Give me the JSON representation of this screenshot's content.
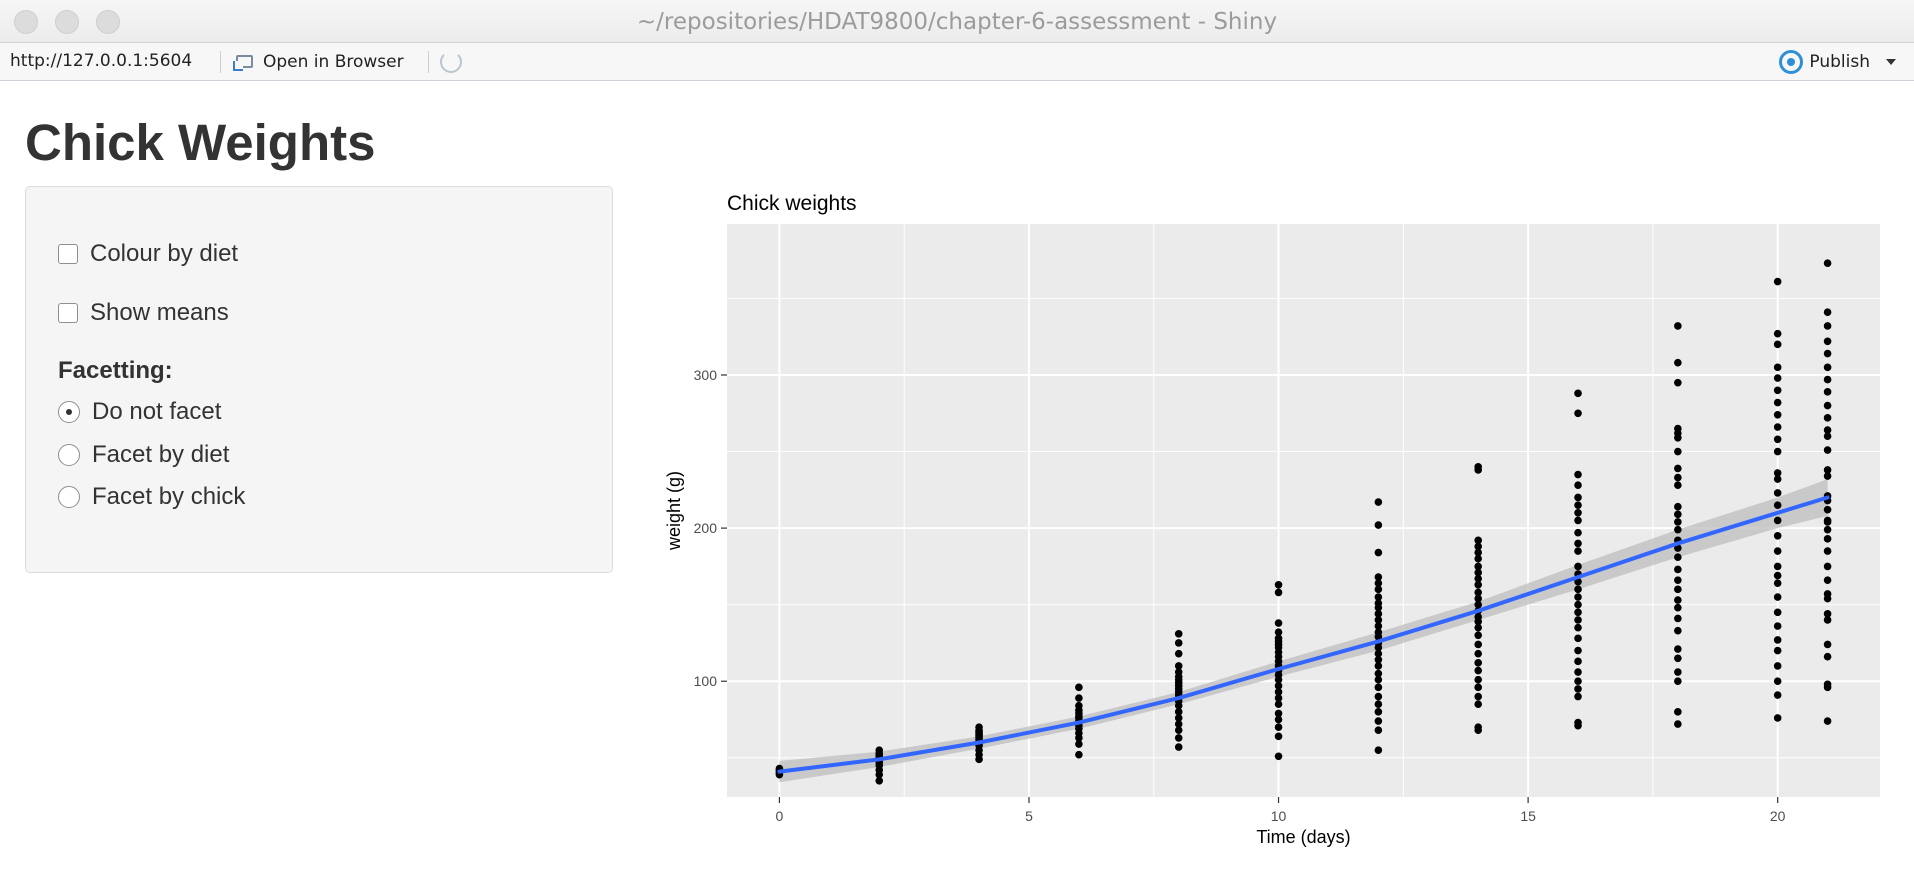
{
  "window": {
    "title": "~/repositories/HDAT9800/chapter-6-assessment - Shiny"
  },
  "toolbar": {
    "url": "http://127.0.0.1:5604",
    "open_in_browser_label": "Open in Browser",
    "publish_label": "Publish"
  },
  "app": {
    "title": "Chick Weights",
    "checkboxes": [
      {
        "label": "Colour by diet",
        "checked": false
      },
      {
        "label": "Show means",
        "checked": false
      }
    ],
    "facetting_label": "Facetting:",
    "radios": [
      {
        "label": "Do not facet",
        "checked": true
      },
      {
        "label": "Facet by diet",
        "checked": false
      },
      {
        "label": "Facet by chick",
        "checked": false
      }
    ]
  },
  "chart_data": {
    "type": "scatter",
    "title": "Chick weights",
    "xlabel": "Time (days)",
    "ylabel": "weight (g)",
    "xlim": [
      -1.05,
      22.05
    ],
    "ylim": [
      24.4,
      398.6
    ],
    "xticks": [
      0,
      5,
      10,
      15,
      20
    ],
    "yticks": [
      100,
      200,
      300
    ],
    "grid": true,
    "colors": {
      "panel": "#ebebeb",
      "grid": "#ffffff",
      "points": "#000000",
      "smooth_line": "#3366ff",
      "ribbon": "#bdbdbd"
    },
    "points_by_time": [
      {
        "x": 0,
        "y": [
          39,
          40,
          41,
          42,
          43
        ]
      },
      {
        "x": 2,
        "y": [
          35,
          39,
          42,
          45,
          47,
          49,
          50,
          51,
          52,
          53,
          55
        ]
      },
      {
        "x": 4,
        "y": [
          49,
          52,
          55,
          58,
          59,
          61,
          62,
          63,
          64,
          65,
          66,
          67,
          68,
          70
        ]
      },
      {
        "x": 6,
        "y": [
          52,
          59,
          63,
          66,
          69,
          71,
          73,
          74,
          76,
          77,
          79,
          81,
          84,
          89,
          96
        ]
      },
      {
        "x": 8,
        "y": [
          57,
          63,
          68,
          72,
          76,
          80,
          84,
          87,
          89,
          91,
          93,
          95,
          97,
          99,
          101,
          103,
          106,
          110,
          118,
          125,
          131
        ]
      },
      {
        "x": 10,
        "y": [
          51,
          64,
          70,
          75,
          79,
          85,
          89,
          93,
          97,
          101,
          104,
          107,
          110,
          113,
          116,
          119,
          122,
          124,
          126,
          128,
          132,
          138,
          158,
          163
        ]
      },
      {
        "x": 12,
        "y": [
          55,
          68,
          74,
          80,
          85,
          90,
          96,
          101,
          105,
          110,
          114,
          118,
          122,
          125,
          129,
          132,
          136,
          140,
          144,
          148,
          151,
          155,
          160,
          164,
          168,
          184,
          202,
          217
        ]
      },
      {
        "x": 14,
        "y": [
          68,
          70,
          85,
          90,
          96,
          101,
          107,
          112,
          118,
          124,
          130,
          135,
          139,
          142,
          146,
          150,
          154,
          158,
          163,
          167,
          171,
          175,
          180,
          184,
          188,
          192,
          238,
          240
        ]
      },
      {
        "x": 16,
        "y": [
          71,
          73,
          90,
          95,
          100,
          106,
          113,
          120,
          128,
          135,
          140,
          145,
          150,
          155,
          160,
          165,
          170,
          175,
          185,
          190,
          197,
          205,
          210,
          215,
          220,
          228,
          235,
          275,
          288
        ]
      },
      {
        "x": 18,
        "y": [
          72,
          80,
          100,
          106,
          115,
          121,
          133,
          141,
          148,
          153,
          160,
          166,
          173,
          181,
          187,
          192,
          199,
          204,
          209,
          214,
          228,
          233,
          239,
          250,
          259,
          262,
          265,
          295,
          308,
          332
        ]
      },
      {
        "x": 20,
        "y": [
          76,
          91,
          100,
          110,
          120,
          127,
          136,
          145,
          155,
          164,
          169,
          175,
          185,
          195,
          205,
          215,
          223,
          232,
          236,
          250,
          258,
          266,
          274,
          282,
          290,
          298,
          305,
          320,
          327,
          361
        ]
      },
      {
        "x": 21,
        "y": [
          74,
          96,
          98,
          116,
          124,
          140,
          144,
          154,
          157,
          166,
          175,
          185,
          193,
          199,
          204,
          205,
          212,
          218,
          221,
          234,
          238,
          251,
          260,
          264,
          272,
          280,
          289,
          297,
          305,
          314,
          322,
          332,
          341,
          373
        ]
      }
    ],
    "smooth": {
      "x": [
        0,
        2,
        4,
        6,
        8,
        10,
        12,
        14,
        16,
        18,
        20,
        21
      ],
      "y": [
        41,
        49,
        60,
        73,
        89,
        108,
        126,
        146,
        168,
        190,
        210,
        220
      ],
      "lower": [
        34,
        44,
        56,
        69,
        85,
        103,
        120,
        140,
        160,
        181,
        200,
        208
      ],
      "upper": [
        48,
        54,
        64,
        77,
        93,
        113,
        132,
        152,
        176,
        199,
        220,
        232
      ]
    }
  }
}
